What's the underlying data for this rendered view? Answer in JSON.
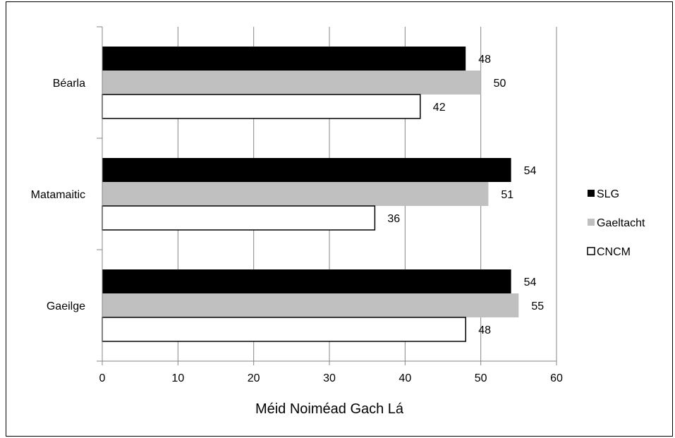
{
  "chart_data": {
    "type": "bar",
    "orientation": "horizontal",
    "categories": [
      "Gaeilge",
      "Matamaitic",
      "Béarla"
    ],
    "series": [
      {
        "name": "SLG",
        "values": [
          54,
          54,
          48
        ],
        "color": "#000000"
      },
      {
        "name": "Gaeltacht",
        "values": [
          55,
          51,
          50
        ],
        "color": "#c0c0c0"
      },
      {
        "name": "CNCM",
        "values": [
          48,
          36,
          42
        ],
        "color": "#ffffff"
      }
    ],
    "xlabel": "Méid Noiméad Gach Lá",
    "ylabel": "",
    "xlim": [
      0,
      60
    ],
    "xticks": [
      "0",
      "10",
      "20",
      "30",
      "40",
      "50",
      "60"
    ],
    "grid": true,
    "legend_position": "right",
    "data_labels": true
  }
}
